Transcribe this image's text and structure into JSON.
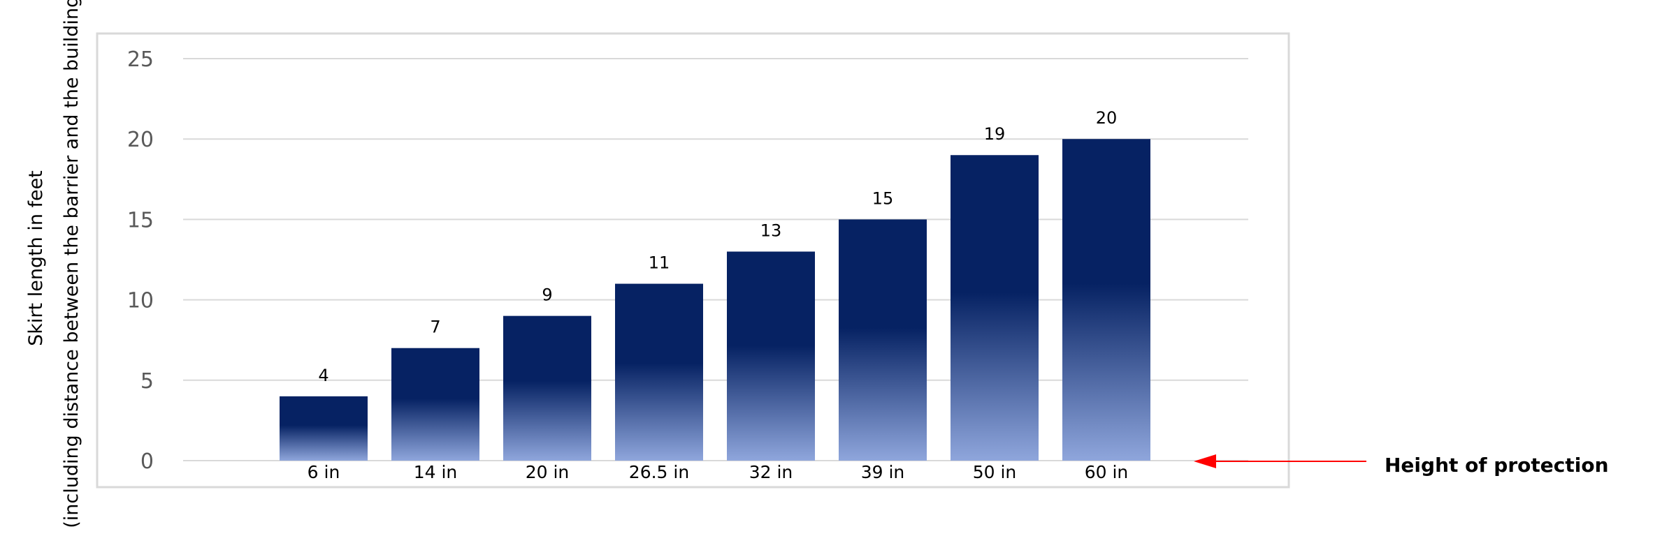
{
  "chart_data": {
    "type": "bar",
    "categories": [
      "6 in",
      "14 in",
      "20 in",
      "26.5 in",
      "32 in",
      "39 in",
      "50 in",
      "60 in"
    ],
    "values": [
      4,
      7,
      9,
      11,
      13,
      15,
      19,
      20
    ],
    "ylabel_line1": "Skirt length in feet",
    "ylabel_line2": "(including distance between the barrier and the building)",
    "ylim": [
      0,
      25
    ],
    "yticks": [
      0,
      5,
      10,
      15,
      20,
      25
    ],
    "grid": true,
    "data_labels": true,
    "annotation": "Height of protection",
    "colors": {
      "bar_top": "#062263",
      "bar_bottom": "#8fa6dc",
      "grid": "#d9d9d9",
      "arrow": "#ff0000",
      "frame": "#d9d9d9"
    }
  }
}
